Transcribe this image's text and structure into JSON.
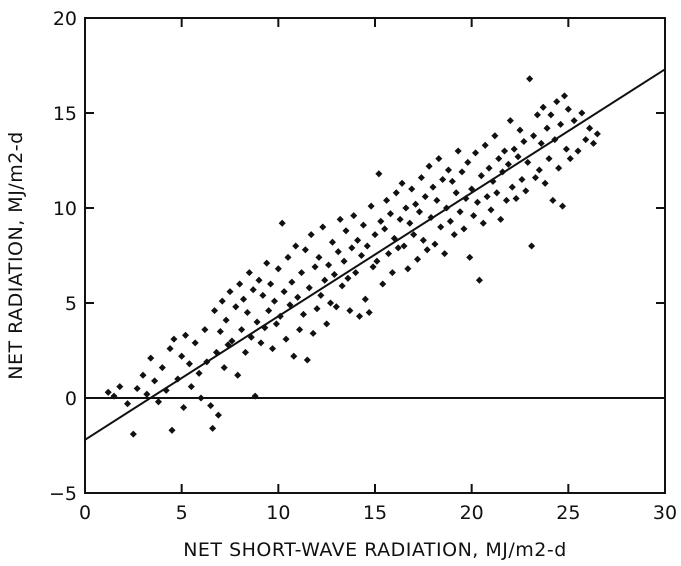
{
  "chart_data": {
    "type": "scatter",
    "title": "",
    "xlabel": "NET SHORT-WAVE RADIATION, MJ/m2-d",
    "ylabel": "NET RADIATION, MJ/m2-d",
    "xlim": [
      0,
      30
    ],
    "ylim": [
      -5,
      20
    ],
    "xticks": [
      0,
      5,
      10,
      15,
      20,
      25,
      30
    ],
    "yticks": [
      -5,
      0,
      5,
      10,
      15,
      20
    ],
    "grid": false,
    "reference_line_y": 0,
    "fit_line": {
      "points": [
        [
          0,
          -2.2
        ],
        [
          30,
          17.3
        ]
      ]
    },
    "series": [
      {
        "points": [
          [
            1.2,
            0.3
          ],
          [
            1.5,
            0.1
          ],
          [
            1.8,
            0.6
          ],
          [
            2.2,
            -0.3
          ],
          [
            2.5,
            -1.9
          ],
          [
            2.7,
            0.5
          ],
          [
            3.0,
            1.2
          ],
          [
            3.2,
            0.2
          ],
          [
            3.4,
            2.1
          ],
          [
            3.6,
            0.9
          ],
          [
            3.8,
            -0.2
          ],
          [
            4.0,
            1.6
          ],
          [
            4.2,
            0.4
          ],
          [
            4.4,
            2.6
          ],
          [
            4.5,
            -1.7
          ],
          [
            4.6,
            3.1
          ],
          [
            4.8,
            1.0
          ],
          [
            5.0,
            2.2
          ],
          [
            5.1,
            -0.5
          ],
          [
            5.2,
            3.3
          ],
          [
            5.4,
            1.8
          ],
          [
            5.5,
            0.6
          ],
          [
            5.7,
            2.9
          ],
          [
            5.9,
            1.3
          ],
          [
            6.0,
            0.0
          ],
          [
            6.2,
            3.6
          ],
          [
            6.3,
            1.9
          ],
          [
            6.5,
            -0.4
          ],
          [
            6.6,
            -1.6
          ],
          [
            6.7,
            4.6
          ],
          [
            6.8,
            2.4
          ],
          [
            6.9,
            -0.9
          ],
          [
            7.0,
            3.5
          ],
          [
            7.1,
            5.1
          ],
          [
            7.2,
            1.6
          ],
          [
            7.3,
            4.1
          ],
          [
            7.4,
            2.8
          ],
          [
            7.5,
            5.6
          ],
          [
            7.6,
            3.0
          ],
          [
            7.8,
            4.8
          ],
          [
            7.9,
            1.2
          ],
          [
            8.0,
            6.0
          ],
          [
            8.1,
            3.6
          ],
          [
            8.2,
            5.2
          ],
          [
            8.3,
            2.4
          ],
          [
            8.4,
            4.5
          ],
          [
            8.5,
            6.6
          ],
          [
            8.6,
            3.2
          ],
          [
            8.7,
            5.7
          ],
          [
            8.8,
            0.1
          ],
          [
            8.9,
            4.0
          ],
          [
            9.0,
            6.2
          ],
          [
            9.1,
            2.9
          ],
          [
            9.2,
            5.4
          ],
          [
            9.3,
            3.7
          ],
          [
            9.4,
            7.1
          ],
          [
            9.5,
            4.6
          ],
          [
            9.6,
            6.0
          ],
          [
            9.7,
            2.6
          ],
          [
            9.8,
            5.1
          ],
          [
            9.9,
            3.9
          ],
          [
            10.0,
            6.8
          ],
          [
            10.1,
            4.3
          ],
          [
            10.2,
            9.2
          ],
          [
            10.3,
            5.6
          ],
          [
            10.4,
            3.1
          ],
          [
            10.5,
            7.4
          ],
          [
            10.6,
            4.9
          ],
          [
            10.7,
            6.1
          ],
          [
            10.8,
            2.2
          ],
          [
            10.9,
            8.0
          ],
          [
            11.0,
            5.3
          ],
          [
            11.1,
            3.6
          ],
          [
            11.2,
            6.6
          ],
          [
            11.3,
            4.4
          ],
          [
            11.4,
            7.8
          ],
          [
            11.5,
            2.0
          ],
          [
            11.6,
            5.8
          ],
          [
            11.7,
            8.6
          ],
          [
            11.8,
            3.4
          ],
          [
            11.9,
            6.9
          ],
          [
            12.0,
            4.7
          ],
          [
            12.1,
            7.4
          ],
          [
            12.2,
            5.4
          ],
          [
            12.3,
            9.0
          ],
          [
            12.4,
            6.2
          ],
          [
            12.5,
            3.9
          ],
          [
            12.6,
            7.0
          ],
          [
            12.7,
            5.0
          ],
          [
            12.8,
            8.2
          ],
          [
            12.9,
            6.5
          ],
          [
            13.0,
            4.8
          ],
          [
            13.1,
            7.7
          ],
          [
            13.2,
            9.4
          ],
          [
            13.3,
            5.9
          ],
          [
            13.4,
            7.2
          ],
          [
            13.5,
            8.8
          ],
          [
            13.6,
            6.3
          ],
          [
            13.7,
            4.6
          ],
          [
            13.8,
            7.9
          ],
          [
            13.9,
            9.6
          ],
          [
            14.0,
            6.6
          ],
          [
            14.1,
            8.3
          ],
          [
            14.2,
            4.3
          ],
          [
            14.3,
            7.5
          ],
          [
            14.4,
            9.1
          ],
          [
            14.5,
            5.2
          ],
          [
            14.6,
            8.0
          ],
          [
            14.7,
            4.5
          ],
          [
            14.8,
            10.1
          ],
          [
            14.9,
            6.9
          ],
          [
            15.0,
            8.6
          ],
          [
            15.1,
            7.2
          ],
          [
            15.2,
            11.8
          ],
          [
            15.3,
            9.3
          ],
          [
            15.4,
            6.0
          ],
          [
            15.5,
            8.9
          ],
          [
            15.6,
            10.4
          ],
          [
            15.7,
            7.6
          ],
          [
            15.8,
            9.7
          ],
          [
            15.9,
            6.6
          ],
          [
            16.0,
            8.4
          ],
          [
            16.1,
            10.8
          ],
          [
            16.2,
            7.9
          ],
          [
            16.3,
            9.4
          ],
          [
            16.4,
            11.3
          ],
          [
            16.5,
            8.0
          ],
          [
            16.6,
            10.0
          ],
          [
            16.7,
            6.8
          ],
          [
            16.8,
            9.2
          ],
          [
            16.9,
            11.0
          ],
          [
            17.0,
            8.6
          ],
          [
            17.1,
            10.2
          ],
          [
            17.2,
            7.3
          ],
          [
            17.3,
            9.8
          ],
          [
            17.4,
            11.6
          ],
          [
            17.5,
            8.3
          ],
          [
            17.6,
            10.6
          ],
          [
            17.7,
            7.8
          ],
          [
            17.8,
            12.2
          ],
          [
            17.9,
            9.5
          ],
          [
            18.0,
            11.1
          ],
          [
            18.1,
            8.1
          ],
          [
            18.2,
            10.4
          ],
          [
            18.3,
            12.6
          ],
          [
            18.4,
            9.0
          ],
          [
            18.5,
            11.5
          ],
          [
            18.6,
            7.6
          ],
          [
            18.7,
            10.0
          ],
          [
            18.8,
            12.0
          ],
          [
            18.9,
            9.3
          ],
          [
            19.0,
            11.4
          ],
          [
            19.1,
            8.6
          ],
          [
            19.2,
            10.8
          ],
          [
            19.3,
            13.0
          ],
          [
            19.4,
            9.8
          ],
          [
            19.5,
            11.9
          ],
          [
            19.6,
            8.9
          ],
          [
            19.7,
            10.5
          ],
          [
            19.8,
            12.4
          ],
          [
            19.9,
            7.4
          ],
          [
            20.0,
            11.0
          ],
          [
            20.1,
            9.6
          ],
          [
            20.2,
            12.9
          ],
          [
            20.3,
            10.3
          ],
          [
            20.4,
            6.2
          ],
          [
            20.5,
            11.7
          ],
          [
            20.6,
            9.2
          ],
          [
            20.7,
            13.3
          ],
          [
            20.8,
            10.6
          ],
          [
            20.9,
            12.1
          ],
          [
            21.0,
            9.9
          ],
          [
            21.1,
            11.4
          ],
          [
            21.2,
            13.8
          ],
          [
            21.3,
            10.8
          ],
          [
            21.4,
            12.6
          ],
          [
            21.5,
            9.4
          ],
          [
            21.6,
            11.9
          ],
          [
            21.7,
            13.0
          ],
          [
            21.8,
            10.4
          ],
          [
            21.9,
            12.3
          ],
          [
            22.0,
            14.6
          ],
          [
            22.1,
            11.1
          ],
          [
            22.2,
            13.1
          ],
          [
            22.3,
            10.5
          ],
          [
            22.4,
            12.7
          ],
          [
            22.5,
            14.1
          ],
          [
            22.6,
            11.5
          ],
          [
            22.7,
            13.5
          ],
          [
            22.8,
            10.9
          ],
          [
            22.9,
            12.4
          ],
          [
            23.0,
            16.8
          ],
          [
            23.1,
            8.0
          ],
          [
            23.2,
            13.8
          ],
          [
            23.3,
            11.6
          ],
          [
            23.4,
            14.9
          ],
          [
            23.5,
            12.0
          ],
          [
            23.6,
            13.4
          ],
          [
            23.7,
            15.3
          ],
          [
            23.8,
            11.3
          ],
          [
            23.9,
            14.2
          ],
          [
            24.0,
            12.6
          ],
          [
            24.1,
            14.9
          ],
          [
            24.2,
            10.4
          ],
          [
            24.3,
            13.6
          ],
          [
            24.4,
            15.6
          ],
          [
            24.5,
            12.1
          ],
          [
            24.6,
            14.4
          ],
          [
            24.7,
            10.1
          ],
          [
            24.8,
            15.9
          ],
          [
            24.9,
            13.1
          ],
          [
            25.0,
            15.2
          ],
          [
            25.1,
            12.6
          ],
          [
            25.3,
            14.6
          ],
          [
            25.5,
            13.0
          ],
          [
            25.7,
            15.0
          ],
          [
            25.9,
            13.6
          ],
          [
            26.1,
            14.2
          ],
          [
            26.3,
            13.4
          ],
          [
            26.5,
            13.9
          ]
        ]
      }
    ]
  }
}
